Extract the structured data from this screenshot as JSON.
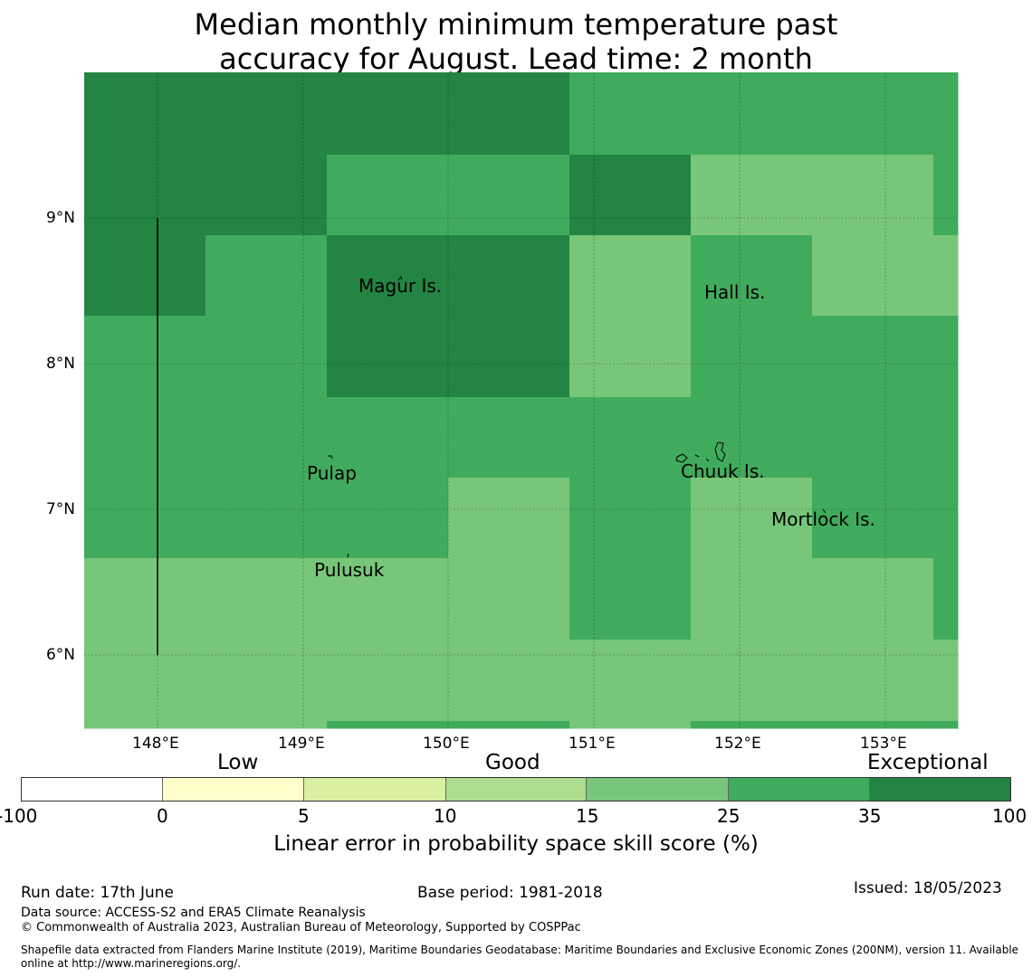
{
  "title_line1": "Median monthly minimum temperature past",
  "title_line2": "accuracy for August. Lead time: 2 month",
  "map": {
    "lat_labels": [
      "9°N",
      "8°N",
      "7°N",
      "6°N"
    ],
    "lon_labels": [
      "148°E",
      "149°E",
      "150°E",
      "151°E",
      "152°E",
      "153°E"
    ],
    "places": [
      "Magur Is.",
      "Hall Is.",
      "Pulap",
      "Chuuk Is.",
      "Mortlock Is.",
      "Pulusuk"
    ]
  },
  "colorbar": {
    "categories": [
      "Low",
      "Good",
      "Exceptional"
    ],
    "ticks": [
      "-100",
      "0",
      "5",
      "10",
      "15",
      "25",
      "35",
      "100"
    ],
    "colors": [
      "#ffffff",
      "#ffffcc",
      "#d9f0a3",
      "#addd8e",
      "#78c679",
      "#41ab5d",
      "#238443"
    ],
    "label": "Linear error in probability space skill score (%)"
  },
  "footer": {
    "run_date": "Run date: 17th June",
    "base_period": "Base period: 1981-2018",
    "issued": "Issued: 18/05/2023",
    "data_source": "Data source: ACCESS-S2 and ERA5 Climate Reanalysis",
    "copyright": "© Commonwealth of Australia 2023, Australian Bureau of Meteorology, Supported by COSPPac",
    "shapefile_line1": "Shapefile data extracted from Flanders Marine Institute (2019), Maritime Boundaries Geodatabase: Maritime Boundaries and Exclusive Economic Zones (200NM), version 11. Available",
    "shapefile_line2": "online at http://www.marineregions.org/."
  }
}
